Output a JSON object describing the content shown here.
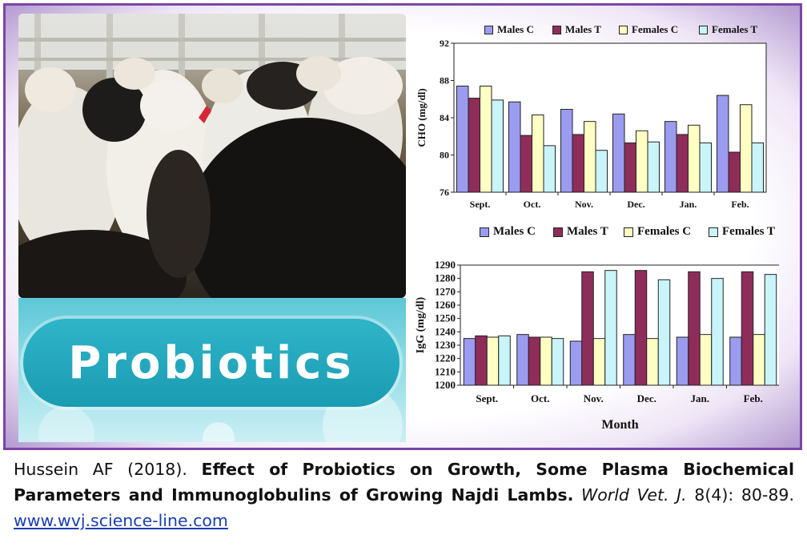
{
  "banner": {
    "word": "Probiotics"
  },
  "chart_data": [
    {
      "type": "bar",
      "categories": [
        "Sept.",
        "Oct.",
        "Nov.",
        "Dec.",
        "Jan.",
        "Feb."
      ],
      "ylabel": "CHO (mg/dl)",
      "xlabel": "",
      "ylim": [
        76,
        92
      ],
      "yticks": [
        76,
        80,
        84,
        88,
        92
      ],
      "series": [
        {
          "name": "Males C",
          "color": "#9b9bf0",
          "values": [
            87.4,
            85.7,
            84.9,
            84.4,
            83.6,
            86.4
          ]
        },
        {
          "name": "Males T",
          "color": "#8f2d5a",
          "values": [
            86.1,
            82.1,
            82.2,
            81.3,
            82.2,
            80.3
          ]
        },
        {
          "name": "Females C",
          "color": "#ffffc4",
          "values": [
            87.4,
            84.3,
            83.6,
            82.6,
            83.2,
            85.4
          ]
        },
        {
          "name": "Females T",
          "color": "#c9f4f9",
          "values": [
            85.9,
            81.0,
            80.5,
            81.4,
            81.3,
            81.3
          ]
        }
      ]
    },
    {
      "type": "bar",
      "categories": [
        "Sept.",
        "Oct.",
        "Nov.",
        "Dec.",
        "Jan.",
        "Feb."
      ],
      "ylabel": "IgG (mg/dl)",
      "xlabel": "Month",
      "ylim": [
        1200,
        1290
      ],
      "yticks": [
        1200,
        1210,
        1220,
        1230,
        1240,
        1250,
        1260,
        1270,
        1280,
        1290
      ],
      "series": [
        {
          "name": "Males C",
          "color": "#9b9bf0",
          "values": [
            1235,
            1238,
            1233,
            1238,
            1236,
            1236
          ]
        },
        {
          "name": "Males T",
          "color": "#8f2d5a",
          "values": [
            1237,
            1236,
            1285,
            1286,
            1285,
            1285
          ]
        },
        {
          "name": "Females C",
          "color": "#ffffc4",
          "values": [
            1236,
            1236,
            1235,
            1235,
            1238,
            1238
          ]
        },
        {
          "name": "Females T",
          "color": "#c9f4f9",
          "values": [
            1237,
            1235,
            1286,
            1279,
            1280,
            1283
          ]
        }
      ]
    }
  ],
  "caption": {
    "authors": "Hussein AF (2018). ",
    "title": "Effect of Probiotics on Growth, Some Plasma Biochemical Parameters and Immunoglobulins of Growing Najdi Lambs.",
    "journal": "World Vet. J.",
    "citation": " 8(4): 80-89. ",
    "link": "www.wvj.science-line.com"
  }
}
